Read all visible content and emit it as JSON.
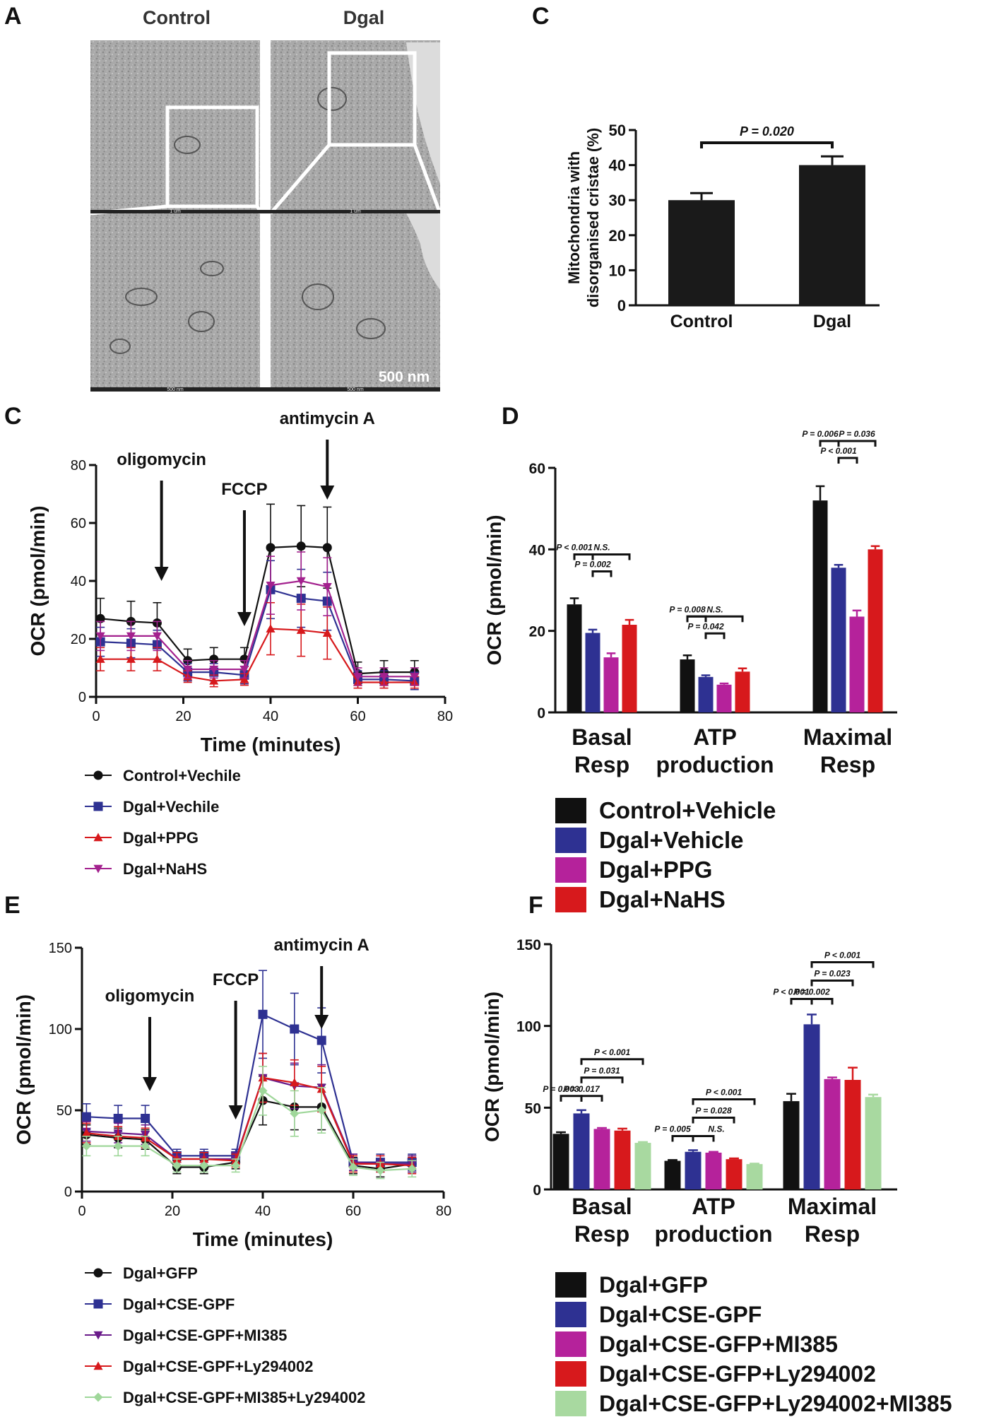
{
  "panels": {
    "A": {
      "letter": "A",
      "col_labels": [
        "Control",
        "Dgal"
      ],
      "scale_text": "500 nm",
      "micro_scale_labels": [
        "1 um",
        "1 um",
        "500 nm",
        "500 nm"
      ]
    },
    "C": {
      "letter": "C",
      "injections": [
        "oligomycin",
        "FCCP",
        "antimycin A"
      ]
    },
    "D": {
      "letter": "D"
    },
    "E": {
      "letter": "E",
      "injections": [
        "oligomycin",
        "FCCP",
        "antimycin A"
      ]
    },
    "F": {
      "letter": "F"
    }
  },
  "chart_data": [
    {
      "id": "B",
      "panel": "B",
      "type": "bar",
      "categories": [
        "Control",
        "Dgal"
      ],
      "values": [
        30,
        40
      ],
      "errors": [
        2,
        2.5
      ],
      "colors": [
        "#1a1a1a",
        "#1a1a1a"
      ],
      "ylabel": "Mitochondria with disorganised cristae (%)",
      "ylabel_lines": [
        "Mitochondria with",
        "disorganised cristae (%)"
      ],
      "ylim": [
        0,
        50
      ],
      "yticks": [
        0,
        10,
        20,
        30,
        40,
        50
      ],
      "annotations": [
        {
          "text": "P = 0.020",
          "between": [
            0,
            1
          ]
        }
      ]
    },
    {
      "id": "C",
      "panel": "C",
      "type": "line",
      "x": [
        1,
        8,
        14,
        21,
        27,
        34,
        40,
        47,
        53,
        60,
        66,
        73
      ],
      "xlabel": "Time (minutes)",
      "ylabel": "OCR (pmol/min)",
      "xlim": [
        0,
        80
      ],
      "ylim": [
        0,
        80
      ],
      "xticks": [
        0,
        20,
        40,
        60,
        80
      ],
      "yticks": [
        0,
        20,
        40,
        60,
        80
      ],
      "series": [
        {
          "name": "Control+Vechile",
          "color": "#111111",
          "marker": "circle",
          "values": [
            27,
            26,
            25.5,
            12.5,
            13,
            13,
            51.5,
            52,
            51.5,
            8,
            8.5,
            8.5
          ],
          "errors": [
            7,
            7,
            7,
            4,
            4,
            4,
            15,
            14,
            14,
            4,
            4,
            4
          ]
        },
        {
          "name": "Dgal+Vechile",
          "color": "#2e3192",
          "marker": "square",
          "values": [
            19,
            18.5,
            18,
            8.5,
            8.5,
            7.5,
            37,
            34,
            33,
            6,
            6,
            5.5
          ],
          "errors": [
            5,
            5,
            5,
            3,
            3,
            3,
            10,
            10,
            10,
            3,
            3,
            3
          ]
        },
        {
          "name": "Dgal+PPG",
          "color": "#d7191c",
          "marker": "triangle-up",
          "values": [
            13,
            13,
            13,
            7,
            5.5,
            6,
            23.5,
            23,
            22,
            5,
            5,
            5
          ],
          "errors": [
            4,
            4,
            4,
            2,
            2,
            2,
            9,
            9,
            9,
            2,
            2,
            2
          ]
        },
        {
          "name": "Dgal+NaHS",
          "color": "#a3218e",
          "marker": "triangle-down",
          "values": [
            21,
            21,
            21,
            9.5,
            9.5,
            9.5,
            38.5,
            40,
            38,
            7,
            7,
            7
          ],
          "errors": [
            5,
            5,
            5,
            3,
            3,
            3,
            10,
            10,
            10,
            3,
            3,
            3
          ]
        }
      ],
      "injections_x": [
        15,
        34,
        53
      ]
    },
    {
      "id": "D",
      "panel": "D",
      "type": "bar",
      "categories": [
        "Basal Resp",
        "ATP production",
        "Maximal Resp"
      ],
      "category_lines": [
        [
          "Basal",
          "Resp"
        ],
        [
          "ATP",
          "production"
        ],
        [
          "Maximal",
          "Resp"
        ]
      ],
      "ylabel": "OCR (pmol/min)",
      "ylim": [
        0,
        60
      ],
      "yticks": [
        0,
        20,
        40,
        60
      ],
      "series": [
        {
          "name": "Control+Vehicle",
          "color": "#111111",
          "values": [
            26.5,
            13,
            52
          ],
          "errors": [
            1.5,
            1,
            3.5
          ]
        },
        {
          "name": "Dgal+Vehicle",
          "color": "#2e3192",
          "values": [
            19.5,
            8.7,
            35.5
          ],
          "errors": [
            0.8,
            0.4,
            0.7
          ]
        },
        {
          "name": "Dgal+PPG",
          "color": "#b5229b",
          "values": [
            13.5,
            6.8,
            23.5
          ],
          "errors": [
            1,
            0.3,
            1.5
          ]
        },
        {
          "name": "Dgal+NaHS",
          "color": "#d7191c",
          "values": [
            21.5,
            10,
            40
          ],
          "errors": [
            1.2,
            0.8,
            0.8
          ]
        }
      ],
      "annotations": [
        {
          "group": 0,
          "text": "P < 0.001",
          "from": 0,
          "to": 1,
          "level": 2
        },
        {
          "group": 0,
          "text": "N.S.",
          "from": 0,
          "to": 3,
          "level": 2,
          "italic": true
        },
        {
          "group": 0,
          "text": "P = 0.002",
          "from": 1,
          "to": 2,
          "level": 1
        },
        {
          "group": 1,
          "text": "P = 0.008",
          "from": 0,
          "to": 1,
          "level": 2
        },
        {
          "group": 1,
          "text": "N.S.",
          "from": 0,
          "to": 3,
          "level": 2,
          "italic": true
        },
        {
          "group": 1,
          "text": "P = 0.042",
          "from": 1,
          "to": 2,
          "level": 1
        },
        {
          "group": 2,
          "text": "P = 0.006",
          "from": 0,
          "to": 1,
          "level": 2
        },
        {
          "group": 2,
          "text": "P = 0.036",
          "from": 1,
          "to": 3,
          "level": 2
        },
        {
          "group": 2,
          "text": "P < 0.001",
          "from": 1,
          "to": 2,
          "level": 1
        }
      ]
    },
    {
      "id": "E",
      "panel": "E",
      "type": "line",
      "x": [
        1,
        8,
        14,
        21,
        27,
        34,
        40,
        47,
        53,
        60,
        66,
        73
      ],
      "xlabel": "Time (minutes)",
      "ylabel": "OCR (pmol/min)",
      "xlim": [
        0,
        80
      ],
      "ylim": [
        0,
        150
      ],
      "xticks": [
        0,
        20,
        40,
        60,
        80
      ],
      "yticks": [
        0,
        50,
        100,
        150
      ],
      "series": [
        {
          "name": "Dgal+GFP",
          "color": "#111111",
          "marker": "circle",
          "values": [
            35,
            33,
            32,
            15,
            15,
            18,
            56,
            52,
            52,
            16,
            14,
            17
          ],
          "errors": [
            6,
            6,
            6,
            4,
            4,
            4,
            15,
            14,
            14,
            5,
            5,
            5
          ]
        },
        {
          "name": "Dgal+CSE-GPF",
          "color": "#2e3192",
          "marker": "square",
          "values": [
            46,
            45,
            45,
            22,
            22,
            22,
            109,
            100,
            93,
            18,
            18,
            18
          ],
          "errors": [
            8,
            8,
            8,
            4,
            4,
            4,
            27,
            22,
            20,
            5,
            5,
            5
          ]
        },
        {
          "name": "Dgal+CSE-GPF+MI385",
          "color": "#6a1b8a",
          "marker": "triangle-down",
          "values": [
            37,
            36,
            35,
            20,
            20,
            20,
            70,
            65,
            64,
            18,
            17,
            17
          ],
          "errors": [
            6,
            6,
            6,
            4,
            4,
            4,
            15,
            14,
            14,
            5,
            5,
            5
          ]
        },
        {
          "name": "Dgal+CSE-GPF+Ly294002",
          "color": "#d7191c",
          "marker": "triangle-up",
          "values": [
            36,
            34,
            33,
            20,
            20,
            19,
            70,
            67,
            63,
            17,
            17,
            16
          ],
          "errors": [
            6,
            6,
            6,
            4,
            4,
            4,
            15,
            14,
            14,
            5,
            5,
            5
          ]
        },
        {
          "name": "Dgal+CSE-GPF+MI385+Ly294002",
          "color": "#9fd79a",
          "marker": "diamond",
          "values": [
            28,
            28,
            28,
            16,
            16,
            16,
            62,
            48,
            50,
            15,
            13,
            14
          ],
          "errors": [
            6,
            6,
            6,
            4,
            4,
            4,
            15,
            14,
            14,
            5,
            5,
            5
          ]
        }
      ],
      "injections_x": [
        15,
        34,
        53
      ]
    },
    {
      "id": "F",
      "panel": "F",
      "type": "bar",
      "categories": [
        "Basal Resp",
        "ATP production",
        "Maximal Resp"
      ],
      "category_lines": [
        [
          "Basal",
          "Resp"
        ],
        [
          "ATP",
          "production"
        ],
        [
          "Maximal",
          "Resp"
        ]
      ],
      "ylabel": "OCR (pmol/min)",
      "ylim": [
        0,
        150
      ],
      "yticks": [
        0,
        50,
        100,
        150
      ],
      "series": [
        {
          "name": "Dgal+GFP",
          "color": "#111111",
          "values": [
            34,
            17.5,
            54
          ],
          "errors": [
            1,
            0.5,
            4.5
          ]
        },
        {
          "name": "Dgal+CSE-GPF",
          "color": "#2e3192",
          "values": [
            46.5,
            23,
            101
          ],
          "errors": [
            2,
            1,
            6
          ]
        },
        {
          "name": "Dgal+CSE-GFP+MI385",
          "color": "#b5229b",
          "values": [
            37,
            22.5,
            67.5
          ],
          "errors": [
            0.6,
            0.5,
            1
          ]
        },
        {
          "name": "Dgal+CSE-GFP+Ly294002",
          "color": "#d7191c",
          "values": [
            36,
            18.5,
            67
          ],
          "errors": [
            1.2,
            0.5,
            7.5
          ]
        },
        {
          "name": "Dgal+CSE-GFP+Ly294002+MI385",
          "color": "#a8d9a0",
          "values": [
            28.5,
            15.5,
            56.5
          ],
          "errors": [
            0.5,
            0.3,
            1.5
          ]
        }
      ],
      "annotations": [
        {
          "group": 0,
          "text": "P = 0.003",
          "from": 0,
          "to": 1,
          "level": 1
        },
        {
          "group": 0,
          "text": "P = 0.017",
          "from": 1,
          "to": 2,
          "level": 1
        },
        {
          "group": 0,
          "text": "P = 0.031",
          "from": 1,
          "to": 3,
          "level": 2
        },
        {
          "group": 0,
          "text": "P <  0.001",
          "from": 1,
          "to": 4,
          "level": 3
        },
        {
          "group": 1,
          "text": "P = 0.005",
          "from": 0,
          "to": 1,
          "level": 1
        },
        {
          "group": 1,
          "text": "N.S.",
          "from": 1,
          "to": 2,
          "level": 1,
          "italic": true
        },
        {
          "group": 1,
          "text": "P = 0.028",
          "from": 1,
          "to": 3,
          "level": 2
        },
        {
          "group": 1,
          "text": "P <  0.001",
          "from": 1,
          "to": 4,
          "level": 3
        },
        {
          "group": 2,
          "text": "P <  0.001",
          "from": 0,
          "to": 1,
          "level": 1
        },
        {
          "group": 2,
          "text": "P = 0.002",
          "from": 1,
          "to": 2,
          "level": 1
        },
        {
          "group": 2,
          "text": "P = 0.023",
          "from": 1,
          "to": 3,
          "level": 2
        },
        {
          "group": 2,
          "text": "P < 0.001",
          "from": 1,
          "to": 4,
          "level": 3
        }
      ]
    }
  ]
}
